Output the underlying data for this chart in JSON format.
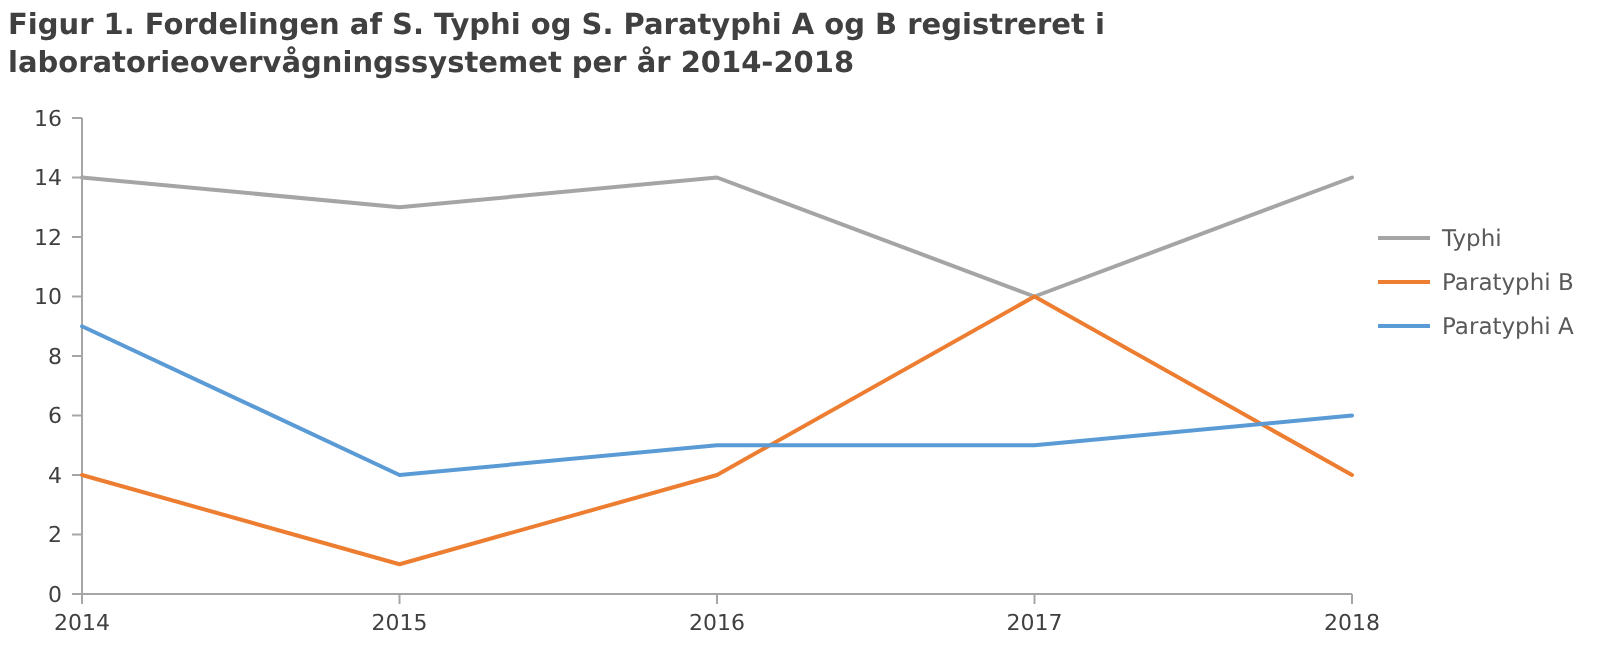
{
  "chart_data": {
    "type": "line",
    "title": "Figur 1. Fordelingen af S. Typhi og S. Paratyphi A og B registreret  i laboratorieovervågningssystemet per år 2014-2018",
    "categories": [
      "2014",
      "2015",
      "2016",
      "2017",
      "2018"
    ],
    "series": [
      {
        "name": "Typhi",
        "color": "#a5a5a5",
        "values": [
          14,
          13,
          14,
          10,
          14
        ]
      },
      {
        "name": "Paratyphi B",
        "color": "#ed7d31",
        "values": [
          4,
          1,
          4,
          10,
          4
        ]
      },
      {
        "name": "Paratyphi A",
        "color": "#5b9bd5",
        "values": [
          9,
          4,
          5,
          5,
          6
        ]
      }
    ],
    "ylim": [
      0,
      16
    ],
    "yticks": [
      0,
      2,
      4,
      6,
      8,
      10,
      12,
      14,
      16
    ],
    "grid": false,
    "legend": "right",
    "marker": "none",
    "line_style": "solid"
  }
}
